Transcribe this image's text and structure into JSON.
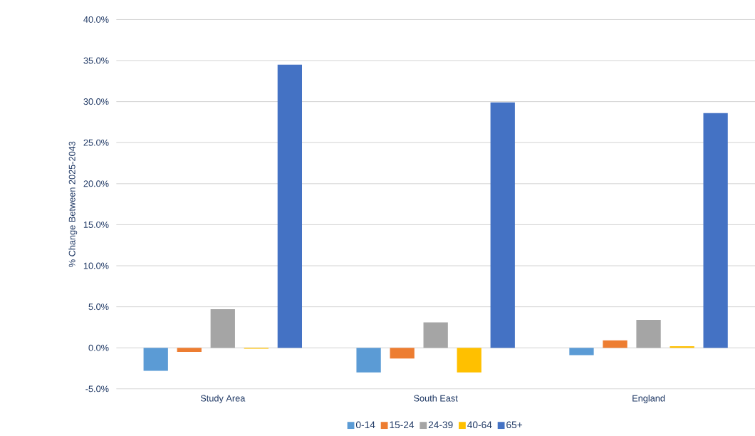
{
  "chart_data": {
    "type": "bar",
    "ylabel": "% Change Between 2025-2043",
    "categories": [
      "Study Area",
      "South East",
      "England"
    ],
    "series": [
      {
        "name": "0-14",
        "color": "#5b9bd5",
        "values": [
          -2.8,
          -3.0,
          -0.9
        ]
      },
      {
        "name": "15-24",
        "color": "#ed7d31",
        "values": [
          -0.5,
          -1.3,
          0.9
        ]
      },
      {
        "name": "24-39",
        "color": "#a5a5a5",
        "values": [
          4.7,
          3.1,
          3.4
        ]
      },
      {
        "name": "40-64",
        "color": "#ffc000",
        "values": [
          -0.1,
          -3.0,
          0.2
        ]
      },
      {
        "name": "65+",
        "color": "#4472c4",
        "values": [
          34.5,
          29.9,
          28.6
        ]
      }
    ],
    "ylim": [
      -5,
      40
    ],
    "yticks": [
      {
        "value": -5,
        "label": "-5.0%"
      },
      {
        "value": 0,
        "label": "0.0%"
      },
      {
        "value": 5,
        "label": "5.0%"
      },
      {
        "value": 10,
        "label": "10.0%"
      },
      {
        "value": 15,
        "label": "15.0%"
      },
      {
        "value": 20,
        "label": "20.0%"
      },
      {
        "value": 25,
        "label": "25.0%"
      },
      {
        "value": 30,
        "label": "30.0%"
      },
      {
        "value": 35,
        "label": "35.0%"
      },
      {
        "value": 40,
        "label": "40.0%"
      }
    ],
    "grid": "y",
    "legend": "bottom"
  }
}
